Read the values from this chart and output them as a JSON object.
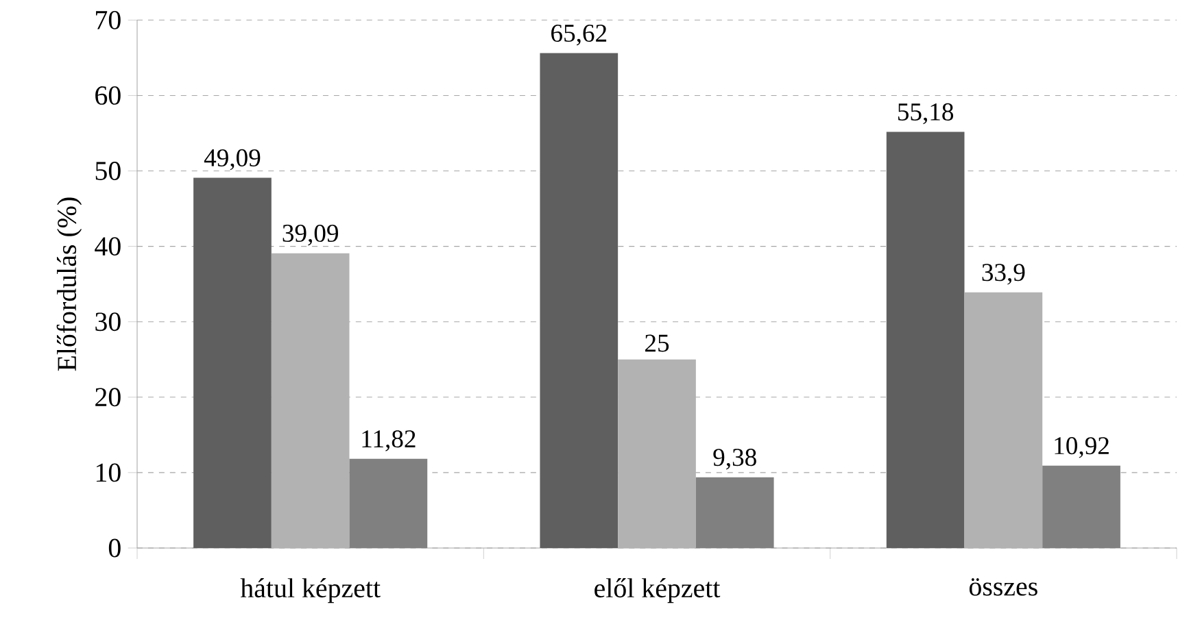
{
  "chart_data": {
    "type": "bar",
    "ylabel": "Előfordulás (%)",
    "categories": [
      "hátul képzett",
      "elől képzett",
      "összes"
    ],
    "series": [
      {
        "color": "#5f5f5f",
        "values": [
          49.09,
          65.62,
          55.18
        ],
        "value_labels": [
          "49,09",
          "65,62",
          "55,18"
        ]
      },
      {
        "color": "#b2b2b2",
        "values": [
          39.09,
          25,
          33.9
        ],
        "value_labels": [
          "39,09",
          "25",
          "33,9"
        ]
      },
      {
        "color": "#808080",
        "values": [
          11.82,
          9.38,
          10.92
        ],
        "value_labels": [
          "11,82",
          "9,38",
          "10,92"
        ]
      }
    ],
    "ylim": [
      0,
      70
    ],
    "yticks": [
      0,
      10,
      20,
      30,
      40,
      50,
      60,
      70
    ],
    "grid": "y"
  }
}
